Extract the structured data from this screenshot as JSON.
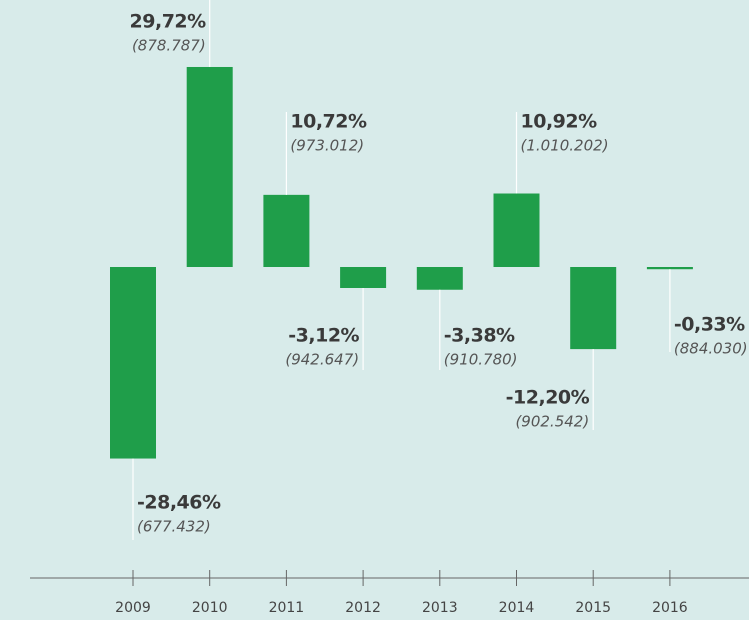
{
  "chart_data": {
    "type": "bar",
    "categories": [
      "2009",
      "2010",
      "2011",
      "2012",
      "2013",
      "2014",
      "2015",
      "2016"
    ],
    "values": [
      -28.46,
      29.72,
      10.72,
      -3.12,
      -3.38,
      10.92,
      -12.2,
      -0.33
    ],
    "value_labels": [
      "-28,46%",
      "29,72%",
      "10,72%",
      "-3,12%",
      "-3,38%",
      "10,92%",
      "-12,20%",
      "-0,33%"
    ],
    "secondary_labels": [
      "(677.432)",
      "(878.787)",
      "(973.012)",
      "(942.647)",
      "(910.780)",
      "(1.010.202)",
      "(902.542)",
      "(884.030)"
    ],
    "color": "#1f9e4a"
  }
}
